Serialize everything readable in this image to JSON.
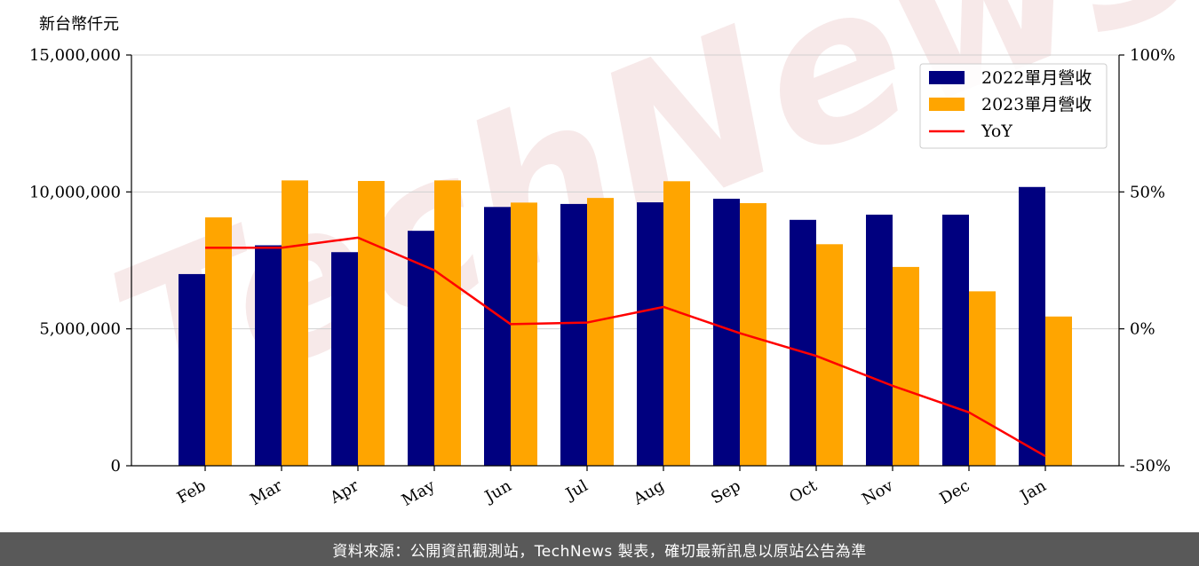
{
  "unit_label": "新台幣仟元",
  "footer_text": "資料來源：公開資訊觀測站，TechNews 製表，確切最新訊息以原站公告為準",
  "watermark_text": "TechNews",
  "colors": {
    "bar_2022": "#00007f",
    "bar_2023": "#ffa500",
    "yoy_line": "#ff0000",
    "footer_bg": "#595959",
    "watermark": "#e9c0c0"
  },
  "chart_data": {
    "type": "bar",
    "categories": [
      "Feb",
      "Mar",
      "Apr",
      "May",
      "Jun",
      "Jul",
      "Aug",
      "Sep",
      "Oct",
      "Nov",
      "Dec",
      "Jan"
    ],
    "series": [
      {
        "name": "2022單月營收",
        "values": [
          7000000,
          8050000,
          7800000,
          8580000,
          9450000,
          9560000,
          9620000,
          9750000,
          8980000,
          9170000,
          9170000,
          10180000
        ]
      },
      {
        "name": "2023單月營收",
        "values": [
          9070000,
          10420000,
          10400000,
          10420000,
          9610000,
          9780000,
          10390000,
          9590000,
          8090000,
          7260000,
          6370000,
          5450000
        ]
      }
    ],
    "line_series": {
      "name": "YoY",
      "axis": "right",
      "values": [
        29.6,
        29.6,
        33.3,
        21.4,
        1.7,
        2.3,
        8.0,
        -1.6,
        -9.9,
        -20.8,
        -30.5,
        -46.5
      ]
    },
    "ylim": [
      0,
      15000000
    ],
    "yticks": [
      0,
      5000000,
      10000000,
      15000000
    ],
    "ytick_labels": [
      "0",
      "5,000,000",
      "10,000,000",
      "15,000,000"
    ],
    "y2lim": [
      -50,
      100
    ],
    "y2ticks": [
      -50,
      0,
      50,
      100
    ],
    "y2tick_labels": [
      "-50%",
      "0%",
      "50%",
      "100%"
    ],
    "grid": "horizontal",
    "legend_position": "top-right",
    "xlabel": "",
    "ylabel": ""
  }
}
